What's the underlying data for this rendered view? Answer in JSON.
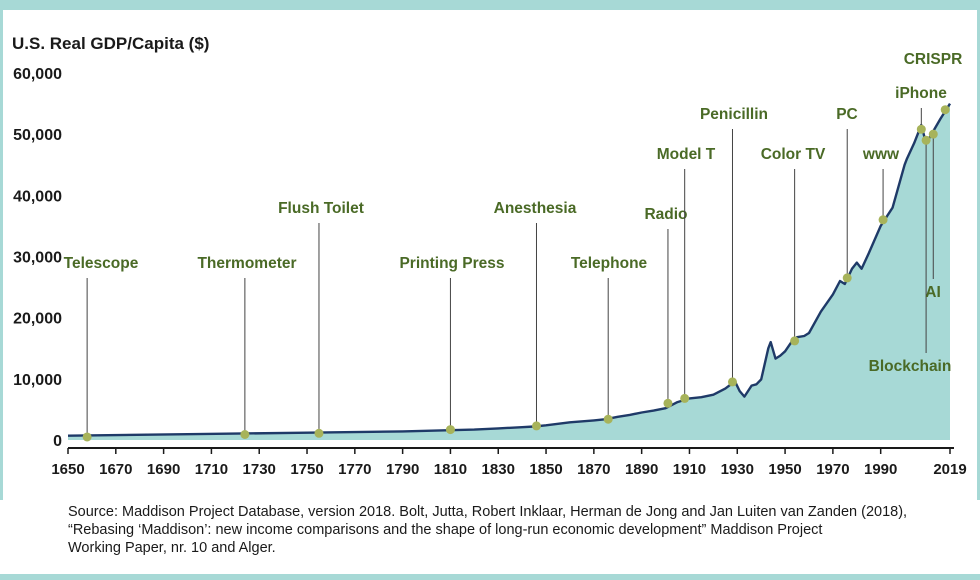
{
  "chart_data": {
    "type": "area",
    "ylabel": "U.S. Real GDP/Capita ($)",
    "xlim": [
      1650,
      2019
    ],
    "ylim": [
      0,
      60000
    ],
    "y_ticks": [
      {
        "value": 0,
        "label": "0"
      },
      {
        "value": 10000,
        "label": "10,000"
      },
      {
        "value": 20000,
        "label": "20,000"
      },
      {
        "value": 30000,
        "label": "30,000"
      },
      {
        "value": 40000,
        "label": "40,000"
      },
      {
        "value": 50000,
        "label": "50,000"
      },
      {
        "value": 60000,
        "label": "60,000"
      }
    ],
    "x_ticks": [
      "1650",
      "1670",
      "1690",
      "1710",
      "1730",
      "1750",
      "1770",
      "1790",
      "1810",
      "1830",
      "1850",
      "1870",
      "1890",
      "1910",
      "1930",
      "1950",
      "1970",
      "1990",
      "2019"
    ],
    "grid": false,
    "colors": {
      "line": "#1f3a68",
      "area": "#a7d9d6",
      "marker": "#a7b35a",
      "label": "#4a6a26"
    },
    "series": [
      {
        "x": [
          1650,
          1700,
          1750,
          1790,
          1820,
          1830,
          1840,
          1845,
          1850,
          1860,
          1870,
          1875,
          1880,
          1885,
          1890,
          1895,
          1900,
          1905,
          1910,
          1915,
          1920,
          1925,
          1929,
          1931,
          1933,
          1936,
          1938,
          1940,
          1943,
          1944,
          1946,
          1948,
          1950,
          1953,
          1955,
          1958,
          1960,
          1965,
          1970,
          1973,
          1975,
          1978,
          1980,
          1982,
          1985,
          1990,
          1995,
          2000,
          2001,
          2004,
          2007,
          2009,
          2012,
          2015,
          2019
        ],
        "y": [
          700,
          950,
          1200,
          1400,
          1700,
          1900,
          2100,
          2200,
          2400,
          2900,
          3200,
          3400,
          3800,
          4100,
          4500,
          4800,
          5200,
          6200,
          6800,
          7000,
          7400,
          8400,
          9600,
          8000,
          7100,
          8900,
          9100,
          9900,
          15000,
          16000,
          13300,
          13800,
          14500,
          16200,
          16800,
          17000,
          17500,
          21000,
          23800,
          26000,
          25500,
          28000,
          29000,
          28000,
          30500,
          35000,
          38000,
          45000,
          46000,
          48500,
          51500,
          48500,
          50500,
          52500,
          55000
        ]
      }
    ],
    "annotations": [
      {
        "label": "Telescope",
        "x": 1658,
        "y": 500
      },
      {
        "label": "Thermometer",
        "x": 1724,
        "y": 900
      },
      {
        "label": "Flush Toilet",
        "x": 1755,
        "y": 1100
      },
      {
        "label": "Printing Press",
        "x": 1810,
        "y": 1700
      },
      {
        "label": "Anesthesia",
        "x": 1846,
        "y": 2300
      },
      {
        "label": "Telephone",
        "x": 1876,
        "y": 3400
      },
      {
        "label": "Radio",
        "x": 1901,
        "y": 6000
      },
      {
        "label": "Model T",
        "x": 1908,
        "y": 6800
      },
      {
        "label": "Penicillin",
        "x": 1928,
        "y": 9500
      },
      {
        "label": "Color TV",
        "x": 1954,
        "y": 16200
      },
      {
        "label": "PC",
        "x": 1976,
        "y": 26500
      },
      {
        "label": "www",
        "x": 1991,
        "y": 36000
      },
      {
        "label": "iPhone",
        "x": 2007,
        "y": 50800
      },
      {
        "label": "Blockchain",
        "x": 2009,
        "y": 49000
      },
      {
        "label": "AI",
        "x": 2012,
        "y": 50000
      },
      {
        "label": "CRISPR",
        "x": 2017,
        "y": 54000
      }
    ]
  },
  "source": {
    "line1": "Source: Maddison Project Database, version 2018. Bolt, Jutta, Robert Inklaar, Herman de Jong and Jan Luiten van Zanden (2018),",
    "line2": "“Rebasing ‘Maddison’: new income comparisons and the shape of long-run economic development” Maddison Project",
    "line3": "Working Paper, nr. 10 and Alger."
  }
}
